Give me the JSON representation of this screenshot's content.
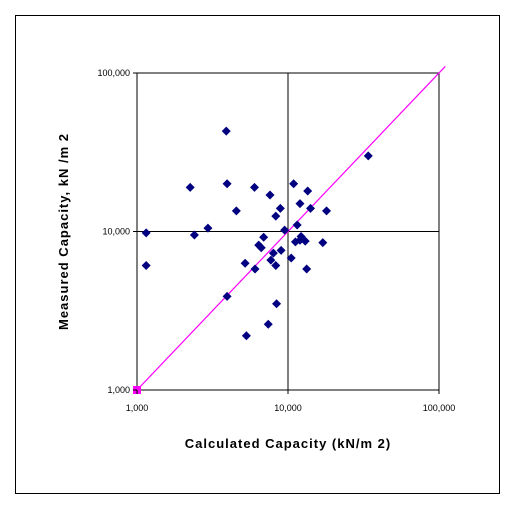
{
  "chart_data": {
    "type": "scatter",
    "title": "",
    "xlabel": "Calculated Capacity (kN/m 2)",
    "ylabel": "Measured Capacity, kN  /m 2",
    "x_scale": "log",
    "y_scale": "log",
    "xlim": [
      1000,
      100000
    ],
    "ylim": [
      1000,
      100000
    ],
    "x_ticks": [
      1000,
      10000,
      100000
    ],
    "y_ticks": [
      1000,
      10000,
      100000
    ],
    "x_tick_labels": [
      "1,000",
      "10,000",
      "100,000"
    ],
    "y_tick_labels": [
      "1,000",
      "10,000",
      "100,000"
    ],
    "grid": "major lines at 10,000 on both axes",
    "legend": "none",
    "point_color": "#000080",
    "line_color": "#ff00ff",
    "reference_line": {
      "x": [
        1000,
        110000
      ],
      "y": [
        1000,
        110000
      ]
    },
    "series": [
      {
        "marker": "diamond",
        "points": [
          [
            1150,
            9800
          ],
          [
            1150,
            6100
          ],
          [
            2250,
            19000
          ],
          [
            2400,
            9500
          ],
          [
            2950,
            10500
          ],
          [
            3900,
            43000
          ],
          [
            3950,
            20000
          ],
          [
            3950,
            3900
          ],
          [
            4550,
            13500
          ],
          [
            5200,
            6300
          ],
          [
            5300,
            2200
          ],
          [
            6000,
            19000
          ],
          [
            6050,
            5800
          ],
          [
            6400,
            8200
          ],
          [
            6650,
            7900
          ],
          [
            6900,
            9200
          ],
          [
            7400,
            2600
          ],
          [
            7600,
            17000
          ],
          [
            7700,
            6600
          ],
          [
            8000,
            7300
          ],
          [
            8300,
            12500
          ],
          [
            8300,
            6100
          ],
          [
            8400,
            3500
          ],
          [
            8900,
            14000
          ],
          [
            9000,
            7600
          ],
          [
            9500,
            10200
          ],
          [
            10500,
            6800
          ],
          [
            10900,
            20000
          ],
          [
            11200,
            8600
          ],
          [
            11500,
            11000
          ],
          [
            12000,
            15000
          ],
          [
            12000,
            8800
          ],
          [
            12200,
            9300
          ],
          [
            13000,
            8700
          ],
          [
            13300,
            5800
          ],
          [
            13500,
            18000
          ],
          [
            14100,
            14000
          ],
          [
            17000,
            8500
          ],
          [
            18000,
            13500
          ],
          [
            34000,
            30000
          ]
        ]
      }
    ],
    "marker_square": {
      "x": 1000,
      "y": 1000,
      "color": "#ff00ff"
    }
  }
}
